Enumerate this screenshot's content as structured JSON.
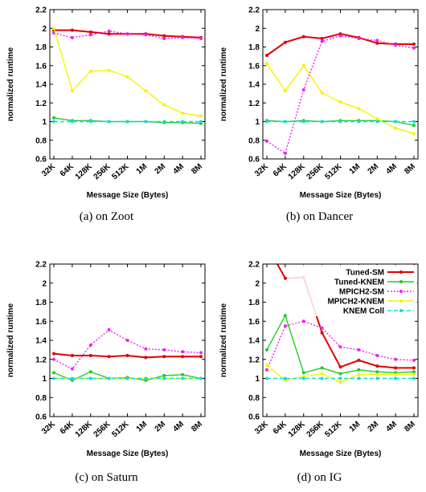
{
  "colors": {
    "Tuned-SM": "#e00000",
    "Tuned-KNEM": "#22cc22",
    "MPICH2-SM": "#ee22ee",
    "MPICH2-KNEM": "#f4f400",
    "KNEM Coll": "#11dddd"
  },
  "captions": [
    "(a)  on Zoot",
    "(b)  on Dancer",
    "(c)  on Saturn",
    "(d)  on IG"
  ],
  "chart_data": [
    {
      "type": "line",
      "title": "",
      "xlabel": "Message Size (Bytes)",
      "ylabel": "normalized runtime",
      "categories": [
        "32K",
        "64K",
        "128K",
        "256K",
        "512K",
        "1M",
        "2M",
        "4M",
        "8M"
      ],
      "ylim": [
        0.6,
        2.2
      ],
      "yticks": [
        "0.6",
        "0.8",
        "1",
        "1.2",
        "1.4",
        "1.6",
        "1.8",
        "2",
        "2.2"
      ],
      "legend": false,
      "series": [
        {
          "name": "Tuned-SM",
          "values": [
            1.98,
            1.98,
            1.96,
            1.94,
            1.94,
            1.94,
            1.92,
            1.91,
            1.9
          ],
          "dash": "solid"
        },
        {
          "name": "Tuned-KNEM",
          "values": [
            1.04,
            1.01,
            1.01,
            1.0,
            1.0,
            1.0,
            0.99,
            0.99,
            0.98
          ],
          "dash": "solid"
        },
        {
          "name": "MPICH2-SM",
          "values": [
            1.95,
            1.9,
            1.93,
            1.97,
            1.94,
            1.93,
            1.89,
            1.9,
            1.89
          ],
          "dash": "dotted"
        },
        {
          "name": "MPICH2-KNEM",
          "values": [
            2.0,
            1.33,
            1.54,
            1.55,
            1.48,
            1.33,
            1.18,
            1.09,
            1.06
          ],
          "dash": "solid"
        },
        {
          "name": "KNEM Coll",
          "values": [
            1.0,
            1.0,
            1.0,
            1.0,
            1.0,
            1.0,
            1.0,
            1.0,
            1.0
          ],
          "dash": "dashed"
        }
      ]
    },
    {
      "type": "line",
      "title": "",
      "xlabel": "Message Size (Bytes)",
      "ylabel": "normalized runtime",
      "categories": [
        "32K",
        "64K",
        "128K",
        "256K",
        "512K",
        "1M",
        "2M",
        "4M",
        "8M"
      ],
      "ylim": [
        0.6,
        2.2
      ],
      "yticks": [
        "0.6",
        "0.8",
        "1",
        "1.2",
        "1.4",
        "1.6",
        "1.8",
        "2",
        "2.2"
      ],
      "legend": false,
      "series": [
        {
          "name": "Tuned-SM",
          "values": [
            1.71,
            1.85,
            1.91,
            1.89,
            1.94,
            1.9,
            1.84,
            1.83,
            1.83
          ],
          "dash": "solid"
        },
        {
          "name": "Tuned-KNEM",
          "values": [
            1.01,
            1.0,
            1.01,
            1.0,
            1.01,
            1.01,
            1.01,
            1.0,
            0.96
          ],
          "dash": "solid"
        },
        {
          "name": "MPICH2-SM",
          "values": [
            0.79,
            0.66,
            1.34,
            1.86,
            1.92,
            1.89,
            1.87,
            1.82,
            1.79
          ],
          "dash": "dotted"
        },
        {
          "name": "MPICH2-KNEM",
          "values": [
            1.62,
            1.33,
            1.6,
            1.31,
            1.21,
            1.14,
            1.03,
            0.93,
            0.87
          ],
          "dash": "solid"
        },
        {
          "name": "KNEM Coll",
          "values": [
            1.0,
            1.0,
            1.0,
            1.0,
            1.0,
            1.0,
            1.0,
            1.0,
            1.0
          ],
          "dash": "dashed"
        }
      ]
    },
    {
      "type": "line",
      "title": "",
      "xlabel": "Message Size (Bytes)",
      "ylabel": "normalized runtime",
      "categories": [
        "32K",
        "64K",
        "128K",
        "256K",
        "512K",
        "1M",
        "2M",
        "4M",
        "8M"
      ],
      "ylim": [
        0.6,
        2.2
      ],
      "yticks": [
        "0.6",
        "0.8",
        "1",
        "1.2",
        "1.4",
        "1.6",
        "1.8",
        "2",
        "2.2"
      ],
      "legend": false,
      "series": [
        {
          "name": "Tuned-SM",
          "values": [
            1.26,
            1.24,
            1.24,
            1.23,
            1.24,
            1.22,
            1.23,
            1.23,
            1.23
          ],
          "dash": "solid"
        },
        {
          "name": "Tuned-KNEM",
          "values": [
            1.06,
            0.98,
            1.07,
            1.0,
            1.01,
            0.98,
            1.03,
            1.04,
            1.0
          ],
          "dash": "solid"
        },
        {
          "name": "MPICH2-SM",
          "values": [
            1.2,
            1.1,
            1.35,
            1.51,
            1.4,
            1.31,
            1.3,
            1.28,
            1.27
          ],
          "dash": "dotted"
        },
        {
          "name": "MPICH2-KNEM",
          "values": [
            1.0,
            1.0,
            1.0,
            1.0,
            1.0,
            1.0,
            1.0,
            1.0,
            1.0
          ],
          "dash": "solid"
        },
        {
          "name": "KNEM Coll",
          "values": [
            1.0,
            1.0,
            1.0,
            1.0,
            1.0,
            1.0,
            1.0,
            1.0,
            1.0
          ],
          "dash": "dashed"
        }
      ]
    },
    {
      "type": "line",
      "title": "",
      "xlabel": "Message Size (Bytes)",
      "ylabel": "normalized runtime",
      "categories": [
        "32K",
        "64K",
        "128K",
        "256K",
        "512K",
        "1M",
        "2M",
        "4M",
        "8M"
      ],
      "ylim": [
        0.6,
        2.2
      ],
      "yticks": [
        "0.6",
        "0.8",
        "1",
        "1.2",
        "1.4",
        "1.6",
        "1.8",
        "2",
        "2.2"
      ],
      "legend": true,
      "legend_position": "top-right",
      "series": [
        {
          "name": "Tuned-SM",
          "values": [
            2.4,
            2.05,
            2.06,
            1.48,
            1.12,
            1.19,
            1.13,
            1.11,
            1.11
          ],
          "dash": "solid"
        },
        {
          "name": "Tuned-KNEM",
          "values": [
            1.3,
            1.66,
            1.06,
            1.11,
            1.05,
            1.09,
            1.07,
            1.06,
            1.07
          ],
          "dash": "solid"
        },
        {
          "name": "MPICH2-SM",
          "values": [
            1.09,
            1.55,
            1.6,
            1.53,
            1.33,
            1.3,
            1.24,
            1.2,
            1.19
          ],
          "dash": "dotted"
        },
        {
          "name": "MPICH2-KNEM",
          "values": [
            1.14,
            0.98,
            1.02,
            1.05,
            0.96,
            1.04,
            1.04,
            1.04,
            1.04
          ],
          "dash": "solid"
        },
        {
          "name": "KNEM Coll",
          "values": [
            1.0,
            1.0,
            1.0,
            1.0,
            1.0,
            1.0,
            1.0,
            1.0,
            1.0
          ],
          "dash": "dashed"
        }
      ]
    }
  ]
}
